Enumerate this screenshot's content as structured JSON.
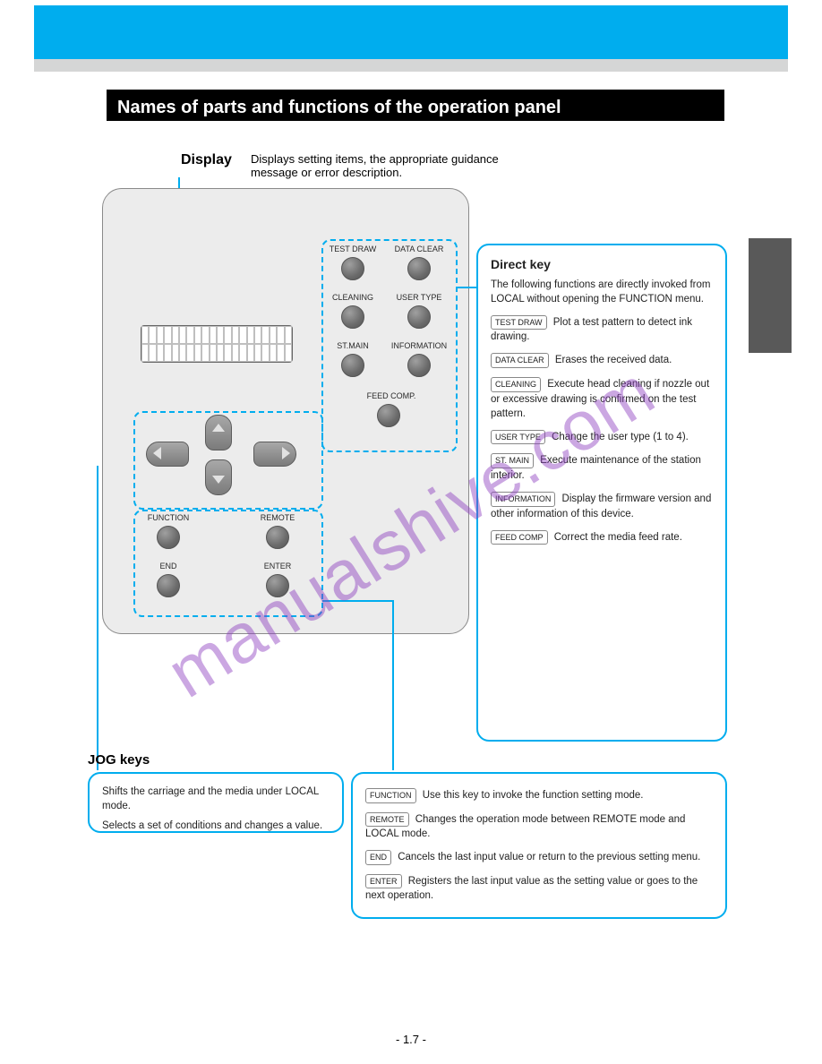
{
  "page": {
    "section_title": "Names of parts and functions of the operation panel",
    "number": "- 1.7 -"
  },
  "display": {
    "label": "Display",
    "desc": "Displays setting items, the appropriate guidance message or error description."
  },
  "panel": {
    "direct_keys": {
      "testdraw": "TEST DRAW",
      "dataclear": "DATA CLEAR",
      "cleaning": "CLEANING",
      "usertype": "USER TYPE",
      "stmain": "ST.MAIN",
      "information": "INFORMATION",
      "feedcomp": "FEED COMP."
    },
    "func_keys": {
      "function": "FUNCTION",
      "remote": "REMOTE",
      "end": "END",
      "enter": "ENTER"
    }
  },
  "callouts": {
    "direct": {
      "title": "Direct key",
      "intro": "The following functions are directly invoked from LOCAL without opening the FUNCTION menu.",
      "items": [
        {
          "label": "TEST DRAW",
          "desc": "Plot a test pattern to detect ink drawing."
        },
        {
          "label": "DATA CLEAR",
          "desc": "Erases the received data."
        },
        {
          "label": "CLEANING",
          "desc": "Execute head cleaning if nozzle out or excessive drawing is confirmed on the test pattern."
        },
        {
          "label": "USER TYPE",
          "desc": "Change the user type (1 to 4)."
        },
        {
          "label": "ST. MAIN",
          "desc": "Execute maintenance of the station interior."
        },
        {
          "label": "INFORMATION",
          "desc": "Display the firmware version and other information of this device."
        },
        {
          "label": "FEED COMP",
          "desc": "Correct the media feed rate."
        }
      ]
    },
    "jog": {
      "title": "JOG keys",
      "items": [
        {
          "desc": "Shifts the carriage and the media under LOCAL mode."
        },
        {
          "desc": "Selects a set of conditions and changes a value."
        }
      ]
    },
    "func": {
      "title": "",
      "items": [
        {
          "label": "FUNCTION",
          "desc": "Use this key to invoke the function setting mode."
        },
        {
          "label": "REMOTE",
          "desc": "Changes the operation mode between REMOTE mode and LOCAL mode."
        },
        {
          "label": "END",
          "desc": "Cancels the last input value or return to the previous setting menu."
        },
        {
          "label": "ENTER",
          "desc": "Registers the last input value as the setting value or goes to the next operation."
        }
      ]
    }
  },
  "watermark": "manualshive.com",
  "colors": {
    "accent": "#00adee",
    "panel_bg": "#ececec",
    "header_bg": "#00adee",
    "subheader_bg": "#d5d6d6",
    "sidetab_bg": "#595959",
    "title_bg": "#000000",
    "btn_dark": "#6b6b6b"
  }
}
